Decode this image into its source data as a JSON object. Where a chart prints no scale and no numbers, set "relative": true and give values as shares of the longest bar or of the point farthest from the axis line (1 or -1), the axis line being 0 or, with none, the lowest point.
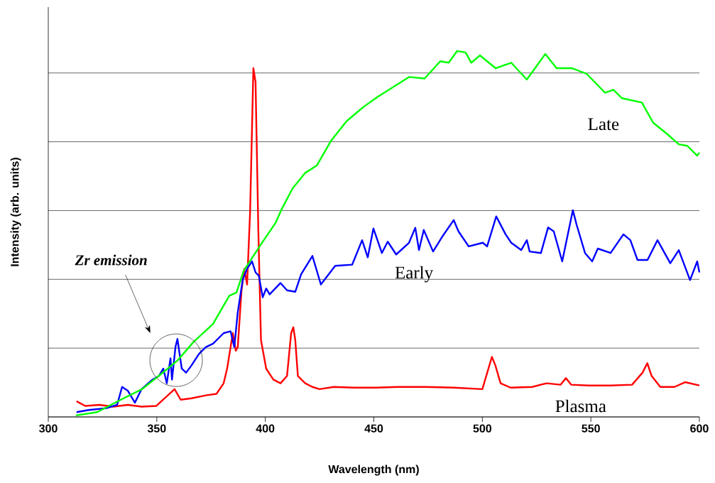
{
  "chart_data": {
    "type": "line",
    "relative": true,
    "xlabel": "Wavelength (nm)",
    "ylabel": "Intensity (arb. units)",
    "xlim": [
      300,
      600
    ],
    "xticks": [
      300,
      350,
      400,
      450,
      500,
      550,
      600
    ],
    "grid": "y",
    "annotations": [
      "Zr emission"
    ],
    "series": [
      {
        "name": "Plasma",
        "color": "#ff0000",
        "x": [
          313,
          317,
          323.5,
          330,
          336.6,
          343,
          349.7,
          358.2,
          361,
          366,
          372.6,
          377.5,
          380.8,
          382.4,
          384,
          385,
          386.4,
          387.3,
          389,
          390.3,
          391.6,
          393,
          394.5,
          395.5,
          396.8,
          398,
          400.4,
          403.7,
          407,
          410,
          411.9,
          412.9,
          413.8,
          415,
          418.4,
          421.7,
          425,
          431.5,
          441,
          451,
          461,
          474,
          487,
          500,
          502.8,
          504.4,
          506,
          508.4,
          513,
          523,
          529.6,
          536,
          538.5,
          541,
          549,
          559,
          569,
          573.8,
          576,
          578,
          582,
          588.5,
          593.4,
          600
        ],
        "values": [
          0.043,
          0.03,
          0.033,
          0.028,
          0.033,
          0.028,
          0.03,
          0.076,
          0.047,
          0.051,
          0.059,
          0.063,
          0.092,
          0.132,
          0.191,
          0.229,
          0.181,
          0.191,
          0.343,
          0.405,
          0.362,
          0.562,
          0.953,
          0.915,
          0.505,
          0.21,
          0.132,
          0.102,
          0.092,
          0.112,
          0.229,
          0.245,
          0.21,
          0.112,
          0.092,
          0.082,
          0.076,
          0.082,
          0.08,
          0.08,
          0.082,
          0.082,
          0.08,
          0.076,
          0.132,
          0.164,
          0.141,
          0.092,
          0.08,
          0.082,
          0.092,
          0.088,
          0.106,
          0.088,
          0.086,
          0.086,
          0.088,
          0.121,
          0.147,
          0.112,
          0.082,
          0.082,
          0.095,
          0.086
        ]
      },
      {
        "name": "Early",
        "color": "#0000ff",
        "x": [
          313,
          318.6,
          326.8,
          331.7,
          334,
          336.6,
          339.9,
          343,
          348,
          351,
          353,
          354.6,
          356.3,
          357,
          358.6,
          359.5,
          361.5,
          363.5,
          366,
          369.4,
          372.6,
          375.9,
          380.8,
          384,
          385.7,
          387.3,
          389.6,
          391.6,
          393.9,
          395.5,
          397,
          398.8,
          400.4,
          402,
          407,
          410,
          413.8,
          416.5,
          421.7,
          425.6,
          432.2,
          440,
          444.6,
          447.2,
          449.8,
          453.7,
          456.4,
          460.3,
          466.2,
          469.1,
          470.8,
          473,
          477.3,
          481.9,
          486.8,
          489,
          493.7,
          500.2,
          502.2,
          506.4,
          510.7,
          513.3,
          517.9,
          520.5,
          521.8,
          527,
          530.3,
          532.9,
          536.8,
          541.7,
          543.4,
          547.3,
          550.6,
          553.2,
          559.1,
          565,
          568.2,
          571.5,
          576.1,
          580.7,
          586.6,
          590.5,
          595.7,
          599,
          600
        ],
        "values": [
          0.013,
          0.019,
          0.024,
          0.033,
          0.082,
          0.072,
          0.039,
          0.076,
          0.102,
          0.112,
          0.132,
          0.092,
          0.16,
          0.102,
          0.191,
          0.213,
          0.132,
          0.121,
          0.141,
          0.172,
          0.191,
          0.2,
          0.229,
          0.234,
          0.191,
          0.286,
          0.375,
          0.405,
          0.425,
          0.395,
          0.386,
          0.327,
          0.351,
          0.335,
          0.366,
          0.346,
          0.342,
          0.39,
          0.44,
          0.362,
          0.413,
          0.416,
          0.483,
          0.436,
          0.515,
          0.448,
          0.479,
          0.444,
          0.476,
          0.517,
          0.456,
          0.511,
          0.452,
          0.496,
          0.538,
          0.507,
          0.466,
          0.476,
          0.466,
          0.548,
          0.499,
          0.476,
          0.456,
          0.483,
          0.452,
          0.448,
          0.518,
          0.507,
          0.425,
          0.565,
          0.526,
          0.448,
          0.425,
          0.46,
          0.448,
          0.499,
          0.483,
          0.429,
          0.429,
          0.483,
          0.42,
          0.456,
          0.374,
          0.425,
          0.395
        ]
      },
      {
        "name": "Late",
        "color": "#00ff00",
        "x": [
          312.7,
          322.5,
          333.4,
          343.2,
          351.9,
          359.5,
          367.1,
          375.9,
          383.4,
          386.7,
          390,
          397.8,
          404.7,
          407.3,
          412.5,
          418.4,
          423.7,
          430.2,
          437.4,
          445.2,
          451.8,
          458.3,
          466.2,
          473.4,
          480.6,
          484.5,
          488.4,
          492.3,
          494.9,
          498.9,
          506.1,
          513.3,
          520.5,
          529,
          534.2,
          541.4,
          548,
          556.5,
          560.4,
          564.3,
          573.5,
          578.7,
          585.2,
          590.5,
          594.4,
          599,
          600
        ],
        "values": [
          0.004,
          0.013,
          0.047,
          0.076,
          0.117,
          0.154,
          0.206,
          0.254,
          0.331,
          0.34,
          0.399,
          0.47,
          0.53,
          0.565,
          0.624,
          0.667,
          0.687,
          0.754,
          0.808,
          0.847,
          0.875,
          0.899,
          0.929,
          0.925,
          0.972,
          0.968,
          1.0,
          0.996,
          0.968,
          0.988,
          0.953,
          0.968,
          0.922,
          0.992,
          0.953,
          0.953,
          0.938,
          0.886,
          0.894,
          0.871,
          0.859,
          0.804,
          0.773,
          0.745,
          0.741,
          0.714,
          0.722
        ]
      }
    ]
  }
}
